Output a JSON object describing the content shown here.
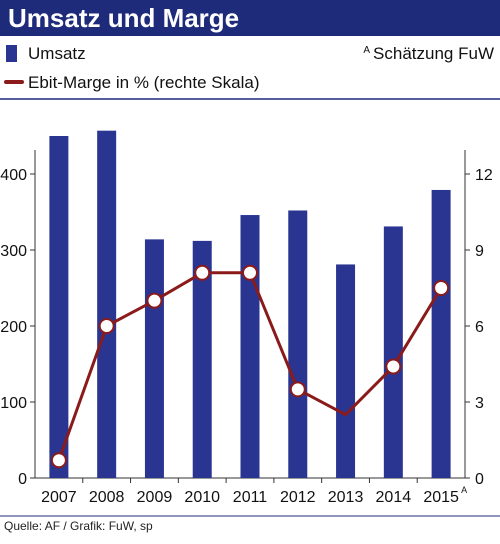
{
  "chart_data": {
    "type": "bar",
    "title": "Umsatz und Marge",
    "categories": [
      "2007",
      "2008",
      "2009",
      "2010",
      "2011",
      "2012",
      "2013",
      "2014",
      "2015"
    ],
    "category_superscripts": [
      "",
      "",
      "",
      "",
      "",
      "",
      "",
      "",
      "A"
    ],
    "series": [
      {
        "name": "Umsatz",
        "type": "bar",
        "axis": "left",
        "values": [
          450,
          457,
          314,
          312,
          346,
          352,
          281,
          331,
          379
        ]
      },
      {
        "name": "Ebit-Marge in % (rechte Skala)",
        "type": "line",
        "axis": "right",
        "values": [
          0.7,
          6.0,
          7.0,
          8.1,
          8.1,
          3.5,
          2.5,
          4.4,
          7.5
        ],
        "markers": [
          true,
          true,
          true,
          true,
          true,
          true,
          false,
          true,
          true
        ]
      }
    ],
    "ylim_left": [
      0,
      500
    ],
    "yticks_left": [
      "0",
      "100",
      "200",
      "300",
      "400"
    ],
    "ylim_right": [
      0,
      15
    ],
    "yticks_right": [
      "0",
      "3",
      "6",
      "9",
      "12"
    ],
    "grid": false,
    "legend_note_superscript": "A",
    "legend_note": "Schätzung FuW",
    "colors": {
      "bar": "#2a3592",
      "line": "#8b1b1b",
      "title_bg": "#1e2a7a",
      "marker_fill": "#ffffff"
    }
  },
  "source": "Quelle: AF / Grafik: FuW, sp"
}
